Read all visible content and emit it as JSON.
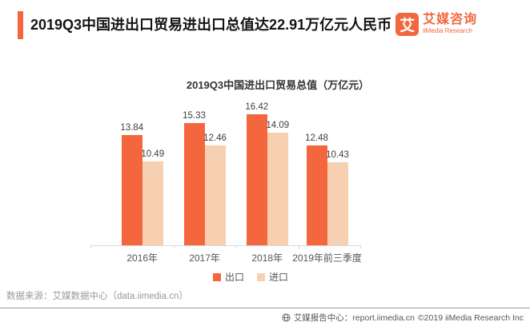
{
  "header": {
    "title": "2019Q3中国进出口贸易进出口总值达22.91万亿元人民币",
    "logo": {
      "glyph": "艾",
      "name_cn": "艾媒咨询",
      "name_en": "iiMedia Research"
    }
  },
  "chart_data": {
    "type": "bar",
    "title": "2019Q3中国进出口贸易总值（万亿元）",
    "categories": [
      "2016年",
      "2017年",
      "2018年",
      "2019年前三季度"
    ],
    "series": [
      {
        "name": "出口",
        "color": "#f4673e",
        "values": [
          13.84,
          15.33,
          16.42,
          12.48
        ]
      },
      {
        "name": "进口",
        "color": "#f7d0b2",
        "values": [
          10.49,
          12.46,
          14.09,
          10.43
        ]
      }
    ],
    "ylim": [
      0,
      18
    ],
    "grid": false,
    "legend_position": "bottom"
  },
  "source_note": "数据来源：艾媒数据中心（data.iimedia.cn）",
  "footer": {
    "report_center": "艾媒报告中心：report.iimedia.cn",
    "copyright": "©2019  iiMedia Research Inc"
  },
  "colors": {
    "accent": "#f2673e",
    "axis": "#d9d9d9"
  }
}
